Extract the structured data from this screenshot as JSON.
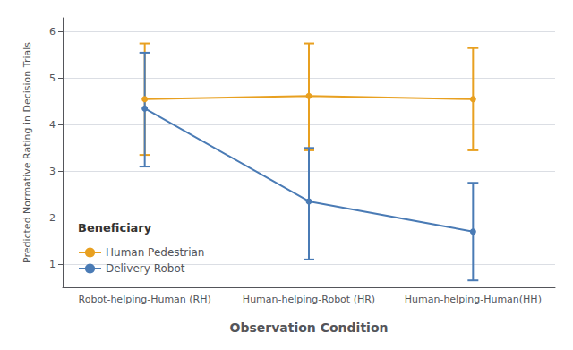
{
  "chart_data": {
    "type": "line",
    "categories": [
      "Robot-helping-Human (RH)",
      "Human-helping-Robot (HR)",
      "Human-helping-Human(HH)"
    ],
    "series": [
      {
        "name": "Human Pedestrian",
        "color": "#E8A020",
        "marker": "circle",
        "values": [
          4.55,
          4.62,
          4.55
        ],
        "ci_lower": [
          3.35,
          3.45,
          3.45
        ],
        "ci_upper": [
          5.75,
          5.75,
          5.65
        ]
      },
      {
        "name": "Delivery Robot",
        "color": "#4A7BB5",
        "marker": "circle",
        "values": [
          4.35,
          2.35,
          1.7
        ],
        "ci_lower": [
          3.1,
          1.1,
          0.65
        ],
        "ci_upper": [
          5.55,
          3.5,
          2.75
        ]
      }
    ],
    "xlabel": "Observation Condition",
    "ylabel": "Predicted Normative Rating in Decision Trials",
    "legend_title": "Beneficiary",
    "ylim": [
      0.5,
      6.3
    ],
    "yticks": [
      1,
      2,
      3,
      4,
      5,
      6
    ],
    "grid": true,
    "legend": "lower left"
  }
}
